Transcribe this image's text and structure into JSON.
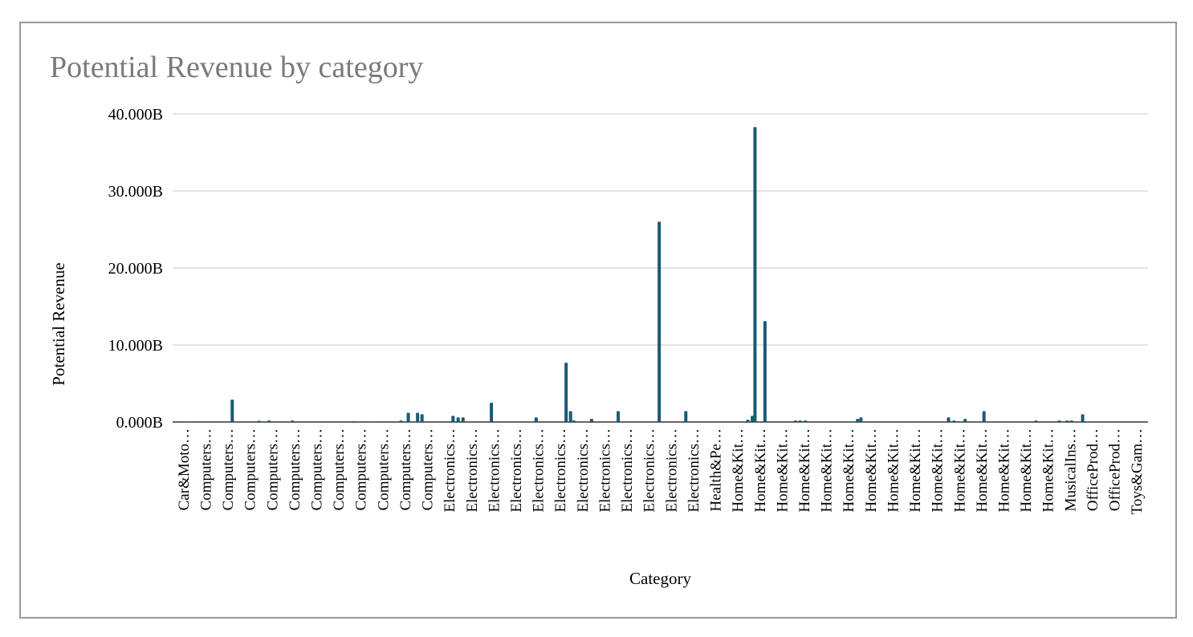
{
  "chart_data": {
    "type": "bar",
    "title": "Potential Revenue by category",
    "xlabel": "Category",
    "ylabel": "Potential Revenue",
    "ylim": [
      0,
      40
    ],
    "y_ticks": [
      "0.000B",
      "10.000B",
      "20.000B",
      "30.000B",
      "40.000B"
    ],
    "y_tick_values": [
      0,
      10,
      20,
      30,
      40
    ],
    "grid": true,
    "legend": "none",
    "bar_color": "#1b5a74",
    "category_labels": [
      "Car&Moto…",
      "Computers…",
      "Computers…",
      "Computers…",
      "Computers…",
      "Computers…",
      "Computers…",
      "Computers…",
      "Computers…",
      "Computers…",
      "Computers…",
      "Computers…",
      "Electronics…",
      "Electronics…",
      "Electronics…",
      "Electronics…",
      "Electronics…",
      "Electronics…",
      "Electronics…",
      "Electronics…",
      "Electronics…",
      "Electronics…",
      "Electronics…",
      "Electronics…",
      "Health&Pe…",
      "Home&Kit…",
      "Home&Kit…",
      "Home&Kit…",
      "Home&Kit…",
      "Home&Kit…",
      "Home&Kit…",
      "Home&Kit…",
      "Home&Kit…",
      "Home&Kit…",
      "Home&Kit…",
      "Home&Kit…",
      "Home&Kit…",
      "Home&Kit…",
      "Home&Kit…",
      "Home&Kit…",
      "MusicalIns…",
      "OfficeProd…",
      "OfficeProd…",
      "Toys&Gam…"
    ],
    "bars": [
      {
        "x": 0.7,
        "value": 0.05
      },
      {
        "x": 2.69,
        "value": 2.9
      },
      {
        "x": 3.9,
        "value": 0.15
      },
      {
        "x": 4.35,
        "value": 0.2
      },
      {
        "x": 5.4,
        "value": 0.2
      },
      {
        "x": 7.0,
        "value": 0.05
      },
      {
        "x": 8.15,
        "value": 0.1
      },
      {
        "x": 9.0,
        "value": 0.05
      },
      {
        "x": 10.3,
        "value": 0.2
      },
      {
        "x": 10.63,
        "value": 1.2
      },
      {
        "x": 11.05,
        "value": 1.2
      },
      {
        "x": 11.25,
        "value": 1.0
      },
      {
        "x": 12.65,
        "value": 0.8
      },
      {
        "x": 12.88,
        "value": 0.6
      },
      {
        "x": 13.1,
        "value": 0.6
      },
      {
        "x": 14.38,
        "value": 2.5
      },
      {
        "x": 16.4,
        "value": 0.6
      },
      {
        "x": 17.75,
        "value": 7.7
      },
      {
        "x": 17.95,
        "value": 1.4
      },
      {
        "x": 18.1,
        "value": 0.2
      },
      {
        "x": 18.9,
        "value": 0.4
      },
      {
        "x": 20.1,
        "value": 1.4
      },
      {
        "x": 21.95,
        "value": 26.0
      },
      {
        "x": 23.15,
        "value": 1.4
      },
      {
        "x": 25.95,
        "value": 0.3
      },
      {
        "x": 26.15,
        "value": 0.8
      },
      {
        "x": 26.27,
        "value": 38.3
      },
      {
        "x": 26.72,
        "value": 13.1
      },
      {
        "x": 28.1,
        "value": 0.2
      },
      {
        "x": 28.3,
        "value": 0.2
      },
      {
        "x": 28.55,
        "value": 0.2
      },
      {
        "x": 30.9,
        "value": 0.4
      },
      {
        "x": 31.05,
        "value": 0.6
      },
      {
        "x": 35.0,
        "value": 0.6
      },
      {
        "x": 35.25,
        "value": 0.2
      },
      {
        "x": 35.75,
        "value": 0.4
      },
      {
        "x": 36.6,
        "value": 1.4
      },
      {
        "x": 38.95,
        "value": 0.2
      },
      {
        "x": 40.0,
        "value": 0.2
      },
      {
        "x": 40.35,
        "value": 0.2
      },
      {
        "x": 40.55,
        "value": 0.2
      },
      {
        "x": 41.05,
        "value": 1.0
      }
    ]
  }
}
